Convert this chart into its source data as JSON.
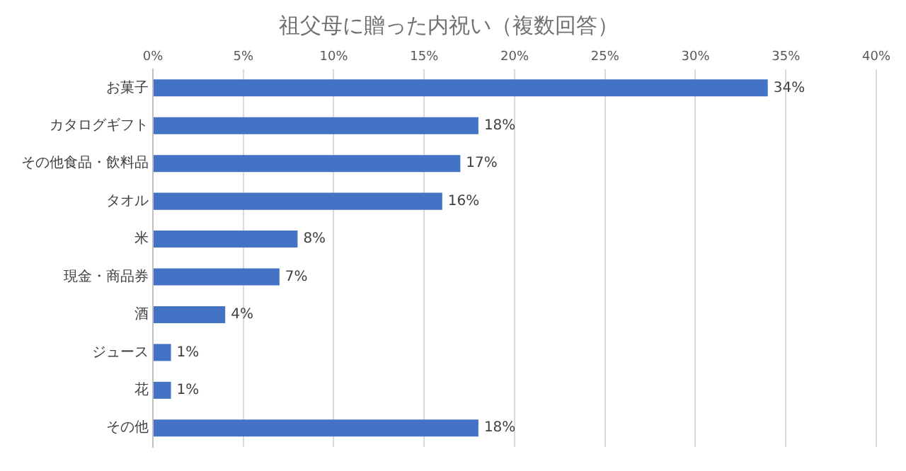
{
  "chart_data": {
    "type": "bar",
    "orientation": "horizontal",
    "title": "祖父母に贈った内祝い（複数回答）",
    "categories": [
      "お菓子",
      "カタログギフト",
      "その他食品・飲料品",
      "タオル",
      "米",
      "現金・商品券",
      "酒",
      "ジュース",
      "花",
      "その他"
    ],
    "values": [
      34,
      18,
      17,
      16,
      8,
      7,
      4,
      1,
      1,
      18
    ],
    "value_labels": [
      "34%",
      "18%",
      "17%",
      "16%",
      "8%",
      "7%",
      "4%",
      "1%",
      "1%",
      "18%"
    ],
    "color": "#4472c4",
    "xlim": [
      0,
      40
    ],
    "xticks": [
      {
        "value": 0,
        "label": "0%"
      },
      {
        "value": 5,
        "label": "5%"
      },
      {
        "value": 10,
        "label": "10%"
      },
      {
        "value": 15,
        "label": "15%"
      },
      {
        "value": 20,
        "label": "20%"
      },
      {
        "value": 25,
        "label": "25%"
      },
      {
        "value": 30,
        "label": "30%"
      },
      {
        "value": 35,
        "label": "35%"
      },
      {
        "value": 40,
        "label": "40%"
      }
    ],
    "grid": true
  }
}
